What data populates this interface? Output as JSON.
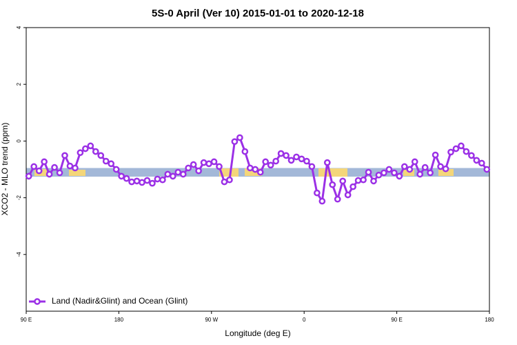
{
  "chart_data": {
    "type": "line",
    "title": "5S-0 April (Ver 10)   2015-01-01 to 2020-12-18",
    "x_label": "Longitude (deg E)",
    "y_label": "XCO2 - MLO trend (ppm)",
    "x": [
      92.5,
      97.5,
      102.5,
      107.5,
      112.5,
      117.5,
      122.5,
      127.5,
      132.5,
      137.5,
      142.5,
      147.5,
      152.5,
      157.5,
      162.5,
      167.5,
      172.5,
      177.5,
      182.5,
      187.5,
      192.5,
      197.5,
      202.5,
      207.5,
      212.5,
      217.5,
      222.5,
      227.5,
      232.5,
      237.5,
      242.5,
      247.5,
      252.5,
      257.5,
      262.5,
      267.5,
      272.5,
      277.5,
      282.5,
      287.5,
      292.5,
      297.5,
      302.5,
      307.5,
      312.5,
      317.5,
      322.5,
      327.5,
      332.5,
      337.5,
      342.5,
      347.5,
      352.5,
      357.5,
      362.5,
      367.5,
      372.5,
      377.5,
      382.5,
      387.5,
      392.5,
      397.5,
      402.5,
      407.5,
      412.5,
      417.5,
      422.5,
      427.5,
      432.5,
      437.5,
      442.5,
      447.5,
      452.5,
      457.5,
      462.5,
      467.5,
      472.5,
      477.5,
      482.5,
      487.5,
      492.5,
      497.5,
      502.5,
      507.5,
      512.5,
      517.5,
      522.5,
      527.5,
      532.5,
      537.5
    ],
    "series": [
      {
        "name": "Land (Nadir&Glint) and Ocean (Glint)",
        "color": "#9b30e6",
        "values": [
          -1.24,
          -0.9,
          -1.05,
          -0.73,
          -1.17,
          -0.93,
          -1.12,
          -0.51,
          -0.88,
          -0.95,
          -0.41,
          -0.27,
          -0.17,
          -0.37,
          -0.51,
          -0.71,
          -0.8,
          -1.0,
          -1.24,
          -1.32,
          -1.44,
          -1.41,
          -1.46,
          -1.39,
          -1.49,
          -1.34,
          -1.37,
          -1.17,
          -1.24,
          -1.1,
          -1.17,
          -0.95,
          -0.83,
          -1.05,
          -0.76,
          -0.8,
          -0.73,
          -0.9,
          -1.44,
          -1.37,
          -0.02,
          0.12,
          -0.37,
          -0.95,
          -1.0,
          -1.1,
          -0.73,
          -0.85,
          -0.71,
          -0.44,
          -0.51,
          -0.68,
          -0.56,
          -0.63,
          -0.71,
          -0.9,
          -1.83,
          -2.12,
          -0.76,
          -1.54,
          -2.05,
          -1.41,
          -1.9,
          -1.61,
          -1.39,
          -1.37,
          -1.1,
          -1.41,
          -1.2,
          -1.12,
          -1.0,
          -1.12,
          -1.24,
          -0.9,
          -1.0,
          -0.73,
          -1.17,
          -0.93,
          -1.12,
          -0.49,
          -0.9,
          -0.98,
          -0.39,
          -0.27,
          -0.17,
          -0.37,
          -0.51,
          -0.68,
          -0.78,
          -1.0
        ]
      }
    ],
    "xlim": [
      90,
      540
    ],
    "xticks": [
      {
        "value": 90,
        "label": "90 E"
      },
      180,
      {
        "value": 270,
        "label": "90 W"
      },
      {
        "value": 360,
        "label": "0"
      },
      {
        "value": 450,
        "label": "90 E"
      },
      {
        "value": 540,
        "label": "180"
      }
    ],
    "ylim": [
      -6,
      4
    ],
    "yticks": [
      -4,
      -2,
      0,
      2,
      4
    ],
    "legend": "bottom-left"
  }
}
